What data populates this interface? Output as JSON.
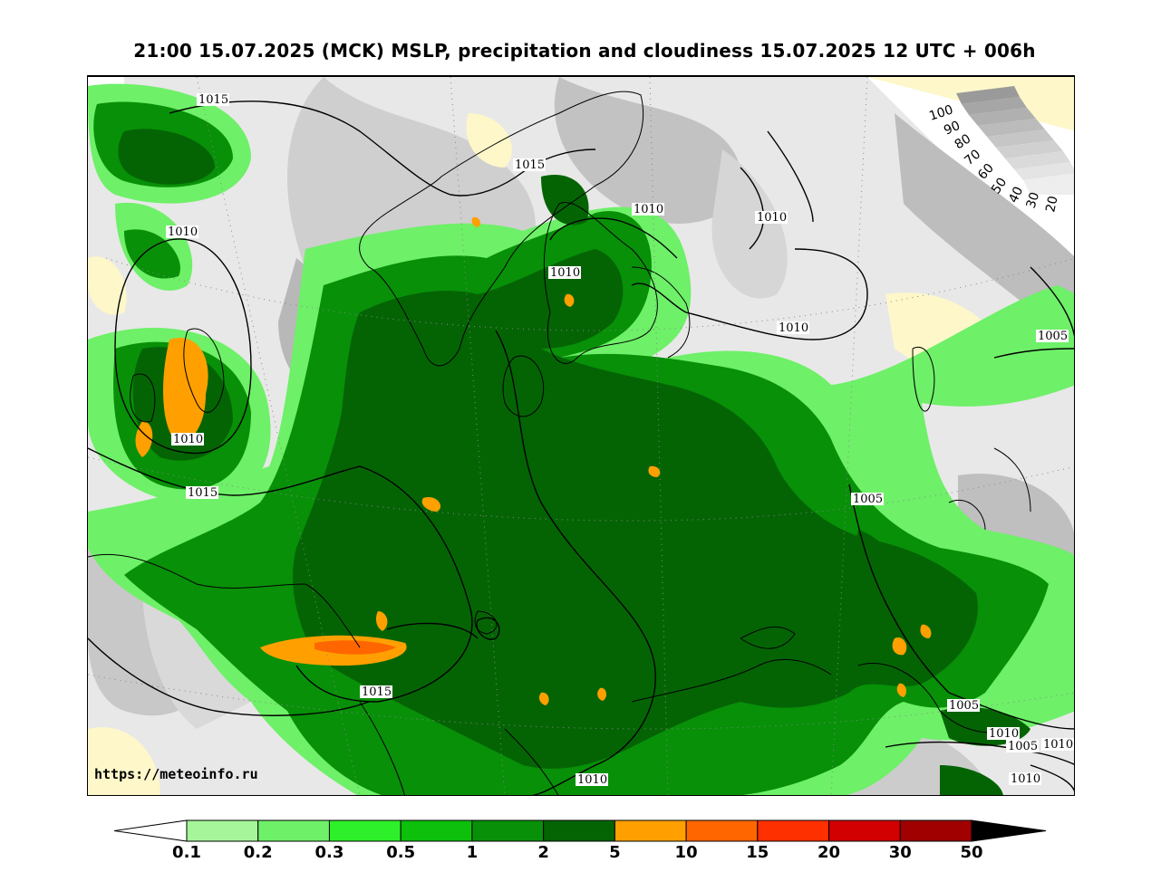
{
  "title": "21:00 15.07.2025 (MCK) MSLP, precipitation and cloudiness 15.07.2025 12 UTC + 006h",
  "source_url": "https://meteoinfo.ru",
  "cloud_scale": {
    "labels": [
      "100",
      "90",
      "80",
      "70",
      "60",
      "50",
      "40",
      "30",
      "20"
    ]
  },
  "precip_scale": {
    "labels": [
      "0.1",
      "0.2",
      "0.3",
      "0.5",
      "1",
      "2",
      "5",
      "10",
      "15",
      "20",
      "30",
      "50"
    ],
    "colors": [
      "#a6f59a",
      "#6ef068",
      "#2ef02a",
      "#0cc00c",
      "#089008",
      "#046404",
      "#ffa000",
      "#ff6600",
      "#ff3000",
      "#d20000",
      "#a00000",
      "#000000"
    ]
  },
  "isobars": {
    "labels": [
      "1015",
      "1015",
      "1010",
      "1010",
      "1010",
      "1010",
      "1010",
      "1010",
      "1015",
      "1005",
      "1005",
      "1005",
      "1015",
      "1010",
      "1010",
      "1005",
      "1010",
      "1010"
    ]
  }
}
